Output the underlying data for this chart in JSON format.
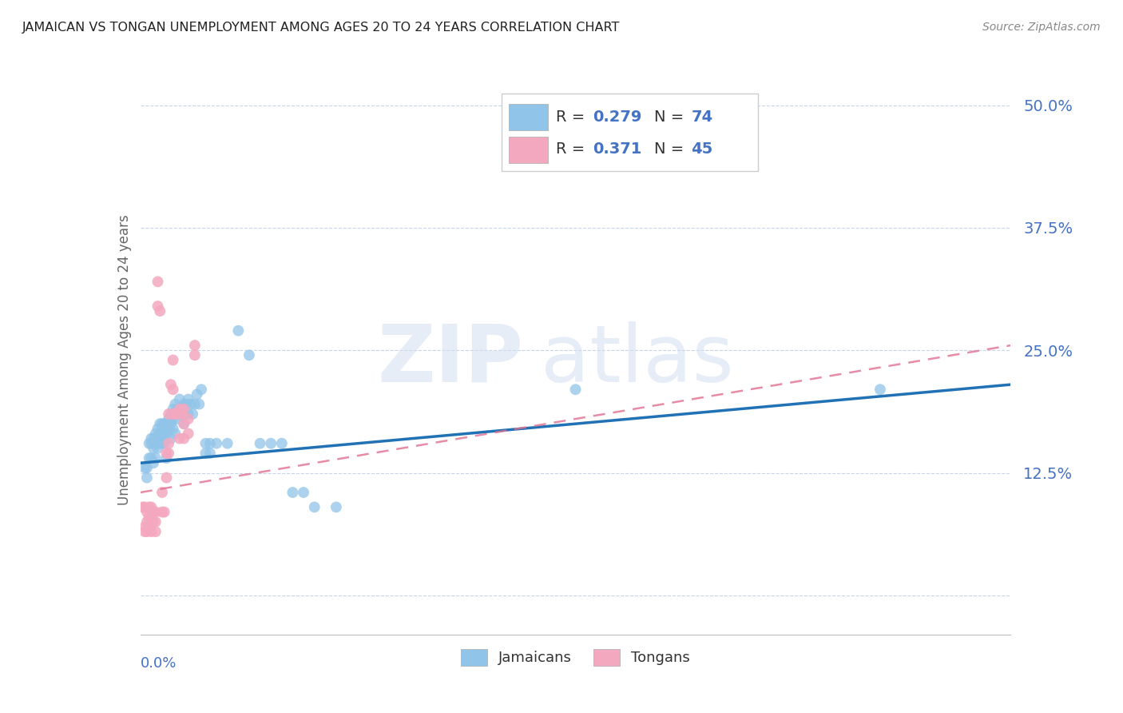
{
  "title": "JAMAICAN VS TONGAN UNEMPLOYMENT AMONG AGES 20 TO 24 YEARS CORRELATION CHART",
  "source": "Source: ZipAtlas.com",
  "ylabel": "Unemployment Among Ages 20 to 24 years",
  "xlim": [
    0.0,
    0.4
  ],
  "ylim": [
    -0.04,
    0.52
  ],
  "yticks": [
    0.0,
    0.125,
    0.25,
    0.375,
    0.5
  ],
  "ytick_labels": [
    "",
    "12.5%",
    "25.0%",
    "37.5%",
    "50.0%"
  ],
  "watermark": "ZIPatlas",
  "jamaican_color": "#90c4e8",
  "tongan_color": "#f4a8c0",
  "jamaican_line_color": "#2171b5",
  "tongan_line_color": "#e07090",
  "background_color": "#ffffff",
  "grid_color": "#c8d4e8",
  "title_color": "#222222",
  "axis_label_color": "#4472c4",
  "jamaican_R": 0.279,
  "jamaican_N": 74,
  "tongan_R": 0.371,
  "tongan_N": 45,
  "jamaican_points": [
    [
      0.002,
      0.13
    ],
    [
      0.003,
      0.13
    ],
    [
      0.003,
      0.12
    ],
    [
      0.004,
      0.155
    ],
    [
      0.004,
      0.14
    ],
    [
      0.005,
      0.16
    ],
    [
      0.005,
      0.155
    ],
    [
      0.005,
      0.14
    ],
    [
      0.006,
      0.16
    ],
    [
      0.006,
      0.15
    ],
    [
      0.006,
      0.135
    ],
    [
      0.007,
      0.165
    ],
    [
      0.007,
      0.155
    ],
    [
      0.007,
      0.14
    ],
    [
      0.008,
      0.17
    ],
    [
      0.008,
      0.16
    ],
    [
      0.008,
      0.15
    ],
    [
      0.009,
      0.175
    ],
    [
      0.009,
      0.165
    ],
    [
      0.009,
      0.155
    ],
    [
      0.01,
      0.175
    ],
    [
      0.01,
      0.165
    ],
    [
      0.01,
      0.155
    ],
    [
      0.011,
      0.175
    ],
    [
      0.011,
      0.165
    ],
    [
      0.011,
      0.155
    ],
    [
      0.012,
      0.175
    ],
    [
      0.012,
      0.165
    ],
    [
      0.012,
      0.14
    ],
    [
      0.013,
      0.18
    ],
    [
      0.013,
      0.17
    ],
    [
      0.014,
      0.185
    ],
    [
      0.014,
      0.175
    ],
    [
      0.014,
      0.16
    ],
    [
      0.015,
      0.19
    ],
    [
      0.015,
      0.18
    ],
    [
      0.015,
      0.17
    ],
    [
      0.016,
      0.195
    ],
    [
      0.016,
      0.185
    ],
    [
      0.016,
      0.165
    ],
    [
      0.017,
      0.19
    ],
    [
      0.017,
      0.18
    ],
    [
      0.018,
      0.2
    ],
    [
      0.018,
      0.185
    ],
    [
      0.019,
      0.19
    ],
    [
      0.02,
      0.195
    ],
    [
      0.02,
      0.185
    ],
    [
      0.02,
      0.175
    ],
    [
      0.021,
      0.195
    ],
    [
      0.022,
      0.2
    ],
    [
      0.022,
      0.185
    ],
    [
      0.023,
      0.195
    ],
    [
      0.024,
      0.185
    ],
    [
      0.025,
      0.195
    ],
    [
      0.026,
      0.205
    ],
    [
      0.027,
      0.195
    ],
    [
      0.028,
      0.21
    ],
    [
      0.03,
      0.155
    ],
    [
      0.03,
      0.145
    ],
    [
      0.032,
      0.155
    ],
    [
      0.032,
      0.145
    ],
    [
      0.035,
      0.155
    ],
    [
      0.04,
      0.155
    ],
    [
      0.045,
      0.27
    ],
    [
      0.05,
      0.245
    ],
    [
      0.055,
      0.155
    ],
    [
      0.06,
      0.155
    ],
    [
      0.065,
      0.155
    ],
    [
      0.07,
      0.105
    ],
    [
      0.075,
      0.105
    ],
    [
      0.08,
      0.09
    ],
    [
      0.09,
      0.09
    ],
    [
      0.2,
      0.21
    ],
    [
      0.34,
      0.21
    ]
  ],
  "tongan_points": [
    [
      0.001,
      0.09
    ],
    [
      0.002,
      0.09
    ],
    [
      0.002,
      0.07
    ],
    [
      0.002,
      0.065
    ],
    [
      0.003,
      0.085
    ],
    [
      0.003,
      0.075
    ],
    [
      0.003,
      0.065
    ],
    [
      0.004,
      0.09
    ],
    [
      0.004,
      0.08
    ],
    [
      0.004,
      0.07
    ],
    [
      0.005,
      0.09
    ],
    [
      0.005,
      0.08
    ],
    [
      0.005,
      0.065
    ],
    [
      0.006,
      0.085
    ],
    [
      0.006,
      0.075
    ],
    [
      0.007,
      0.085
    ],
    [
      0.007,
      0.075
    ],
    [
      0.007,
      0.065
    ],
    [
      0.008,
      0.32
    ],
    [
      0.008,
      0.295
    ],
    [
      0.009,
      0.29
    ],
    [
      0.01,
      0.105
    ],
    [
      0.01,
      0.085
    ],
    [
      0.011,
      0.085
    ],
    [
      0.012,
      0.145
    ],
    [
      0.012,
      0.12
    ],
    [
      0.013,
      0.185
    ],
    [
      0.013,
      0.155
    ],
    [
      0.013,
      0.145
    ],
    [
      0.014,
      0.215
    ],
    [
      0.015,
      0.24
    ],
    [
      0.015,
      0.21
    ],
    [
      0.015,
      0.185
    ],
    [
      0.016,
      0.185
    ],
    [
      0.017,
      0.185
    ],
    [
      0.018,
      0.19
    ],
    [
      0.018,
      0.16
    ],
    [
      0.019,
      0.185
    ],
    [
      0.02,
      0.19
    ],
    [
      0.02,
      0.175
    ],
    [
      0.02,
      0.16
    ],
    [
      0.022,
      0.18
    ],
    [
      0.022,
      0.165
    ],
    [
      0.025,
      0.255
    ],
    [
      0.025,
      0.245
    ]
  ],
  "jamaican_trend_x": [
    0.0,
    0.4
  ],
  "jamaican_trend_y": [
    0.135,
    0.215
  ],
  "tongan_trend_x": [
    0.0,
    0.4
  ],
  "tongan_trend_y": [
    0.105,
    0.255
  ]
}
